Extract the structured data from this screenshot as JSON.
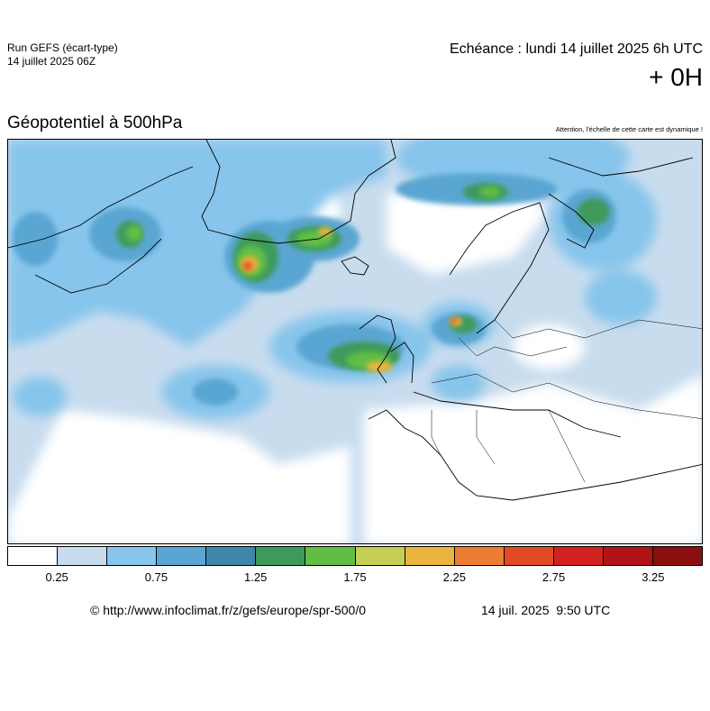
{
  "header": {
    "run_title": "Run GEFS (écart-type)",
    "run_date": "14 juillet 2025 06Z",
    "echeance": "Echéance : lundi 14 juillet 2025 6h UTC",
    "lead_time": "+ 0H"
  },
  "map": {
    "title": "Géopotentiel à 500hPa",
    "notice": "Attention, l'échelle de cette carte est dynamique !",
    "region": "Europe / North Atlantic"
  },
  "legend": {
    "colors": [
      "#ffffff",
      "#c8dcee",
      "#87c5ec",
      "#5aa6d2",
      "#3f86aa",
      "#3e9a5c",
      "#62bd45",
      "#c6cf55",
      "#ebb53d",
      "#ee7d33",
      "#e24a25",
      "#d2211f",
      "#b01216",
      "#8c0e0e"
    ],
    "ticks": [
      "0.25",
      "0.75",
      "1.25",
      "1.75",
      "2.25",
      "2.75",
      "3.25"
    ]
  },
  "footer": {
    "link": "© http://www.infoclimat.fr/z/gefs/europe/spr-500/0",
    "timestamp": "14 juil. 2025  9:50 UTC"
  }
}
